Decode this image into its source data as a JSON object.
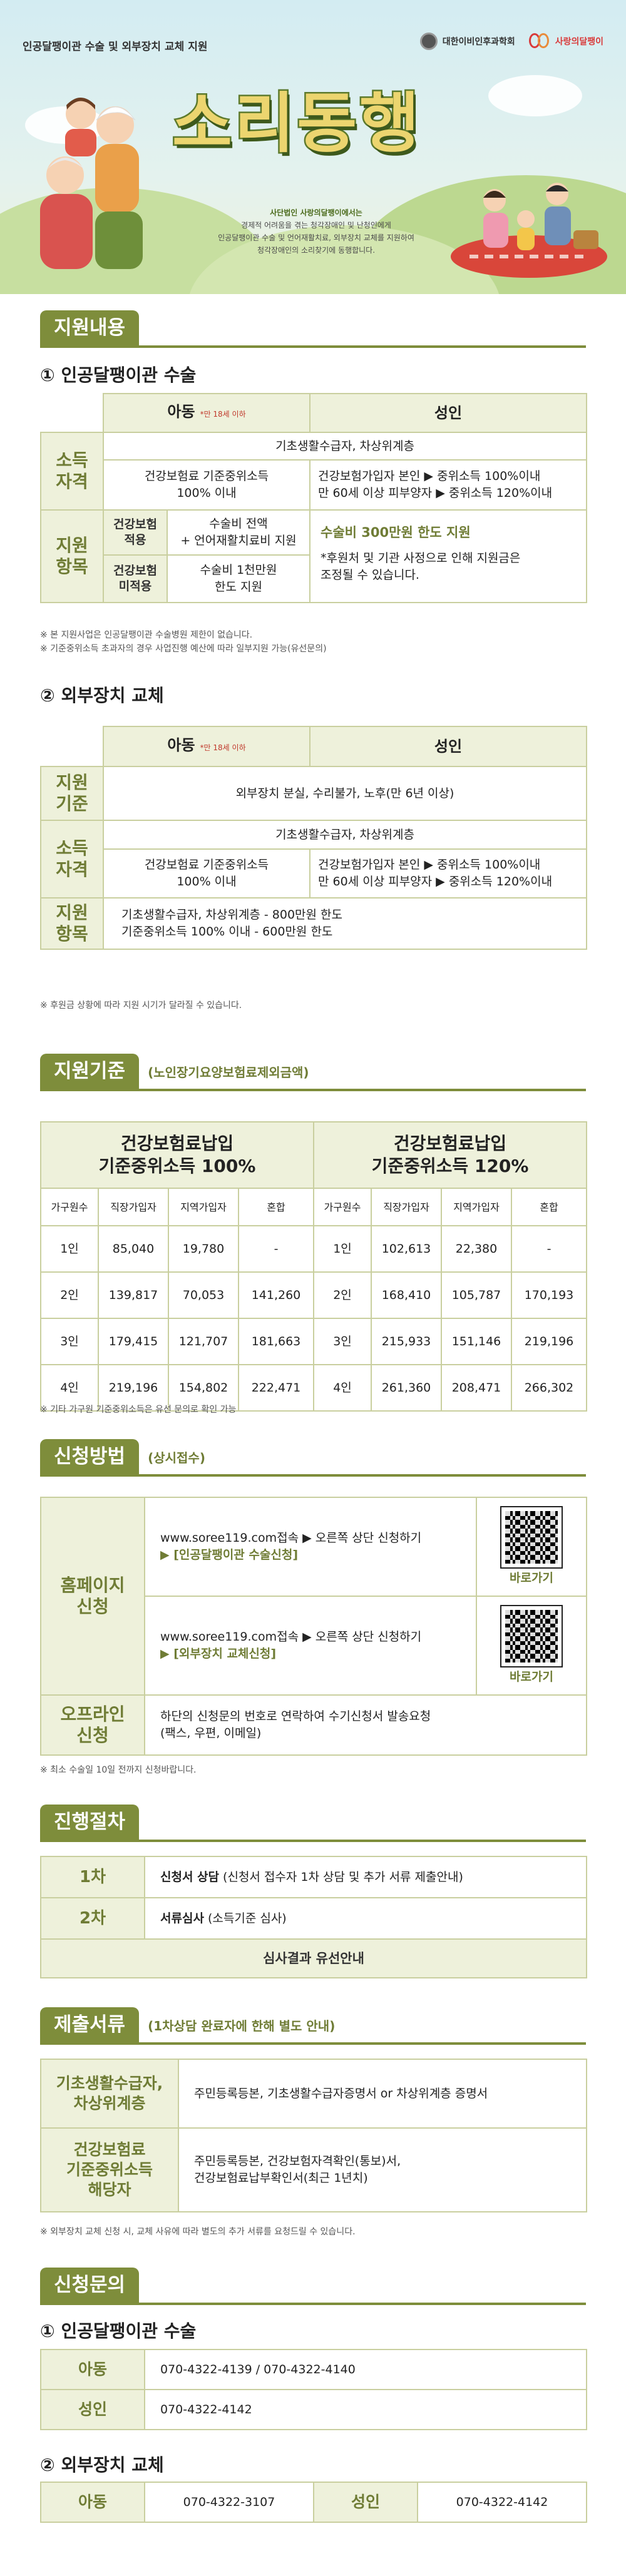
{
  "hero": {
    "topline": "인공달팽이관 수술 및 외부장치 교체 지원",
    "org1": "대한이비인후과학회",
    "org2": "사랑의달팽이",
    "title": "소리동행",
    "desc_lines": [
      "사단법인 사랑의달팽이에서는",
      "경제적 어려움을 겪는 청각장애인 및 난청인에게",
      "인공달팽이관 수술 및 언어재활치료, 외부장치 교체를 지원하여",
      "청각장애인의 소리찾기에 동행합니다."
    ]
  },
  "s1": {
    "title": "지원내용",
    "sub1": "① 인공달팽이관 수술",
    "t1": {
      "child": "아동",
      "child_note": "*만 18세 이하",
      "adult": "성인",
      "label_qual": "소득\n자격",
      "label_items": "지원\n항목",
      "qual_common": "기초생활수급자, 차상위계층",
      "qual_child": "건강보험료 기준중위소득\n100% 이내",
      "qual_adult_1": "건강보험가입자 본인 ▶ 중위소득 100%이내",
      "qual_adult_2": "만 60세 이상 피부양자 ▶ 중위소득 120%이내",
      "ins_yes": "건강보험\n적용",
      "ins_yes_val": "수술비 전액\n+ 언어재활치료비 지원",
      "ins_no": "건강보험\n미적용",
      "ins_no_val": "수술비 1천만원\n한도 지원",
      "adult_item_1": "수술비 300만원 한도 지원",
      "adult_item_2": "*후원처 및 기관 사정으로 인해 지원금은\n조정될 수 있습니다."
    },
    "note1": "※ 본 지원사업은 인공달팽이관 수술병원 제한이 없습니다.",
    "note2": "※ 기준중위소득 초과자의 경우 사업진행 예산에 따라 일부지원 가능(유선문의)",
    "sub2": "② 외부장치 교체",
    "t2": {
      "child": "아동",
      "child_note": "*만 18세 이하",
      "adult": "성인",
      "label_basis": "지원\n기준",
      "basis": "외부장치 분실, 수리불가, 노후(만 6년 이상)",
      "label_qual": "소득\n자격",
      "qual_common": "기초생활수급자, 차상위계층",
      "qual_child": "건강보험료 기준중위소득\n100% 이내",
      "qual_adult_1": "건강보험가입자 본인 ▶ 중위소득 100%이내",
      "qual_adult_2": "만 60세 이상 피부양자 ▶ 중위소득 120%이내",
      "label_items": "지원\n항목",
      "item_1": "기초생활수급자, 차상위계층  -  800만원 한도",
      "item_2": "기준중위소득 100% 이내  -  600만원 한도"
    },
    "note3": "※ 후원금 상황에 따라 지원 시기가 달라질 수 있습니다."
  },
  "s2": {
    "title": "지원기준",
    "note": "(노인장기요양보험료제외금액)",
    "left_head": "건강보험료납입\n기준중위소득 100%",
    "right_head": "건강보험료납입\n기준중위소득 120%",
    "cols": [
      "가구원수",
      "직장가입자",
      "지역가입자",
      "혼합"
    ],
    "rows_left": [
      [
        "1인",
        "85,040",
        "19,780",
        "-"
      ],
      [
        "2인",
        "139,817",
        "70,053",
        "141,260"
      ],
      [
        "3인",
        "179,415",
        "121,707",
        "181,663"
      ],
      [
        "4인",
        "219,196",
        "154,802",
        "222,471"
      ]
    ],
    "rows_right": [
      [
        "1인",
        "102,613",
        "22,380",
        "-"
      ],
      [
        "2인",
        "168,410",
        "105,787",
        "170,193"
      ],
      [
        "3인",
        "215,933",
        "151,146",
        "219,196"
      ],
      [
        "4인",
        "261,360",
        "208,471",
        "266,302"
      ]
    ],
    "footnote": "※ 기타 가구원 기준중위소득은 유선 문의로 확인 가능"
  },
  "s3": {
    "title": "신청방법",
    "note": "(상시접수)",
    "label_home": "홈페이지\n신청",
    "home_1a": "www.soree119.com접속 ▶ 오른쪽 상단 신청하기",
    "home_1b": "▶ [인공달팽이관 수술신청]",
    "home_2a": "www.soree119.com접속 ▶ 오른쪽 상단 신청하기",
    "home_2b": "▶ [외부장치 교체신청]",
    "qr_caption": "바로가기",
    "label_off": "오프라인\n신청",
    "off_text": "하단의 신청문의 번호로 연락하여 수기신청서 발송요청\n(팩스, 우편, 이메일)",
    "footnote": "※ 최소 수술일 10일 전까지 신청바랍니다."
  },
  "s4": {
    "title": "진행절차",
    "step1_label": "1차",
    "step1_bold": "신청서 상담",
    "step1_text": " (신청서 접수자 1차 상담 및 추가 서류 제출안내)",
    "step2_label": "2차",
    "step2_bold": "서류심사",
    "step2_text": " (소득기준 심사)",
    "step3": "심사결과 유선안내"
  },
  "s5": {
    "title": "제출서류",
    "note": "(1차상담 완료자에 한해 별도 안내)",
    "label_1": "기초생활수급자,\n차상위계층",
    "text_1": "주민등록등본, 기초생활수급자증명서 or 차상위계층 증명서",
    "label_2": "건강보험료\n기준중위소득\n해당자",
    "text_2": "주민등록등본, 건강보험자격확인(통보)서,\n건강보험료납부확인서(최근 1년치)",
    "footnote": "※ 외부장치 교체 신청 시, 교체 사유에 따라 별도의 추가 서류를 요청드릴 수 있습니다."
  },
  "s6": {
    "title": "신청문의",
    "sub1": "① 인공달팽이관 수술",
    "child": "아동",
    "child_phone": "070-4322-4139 / 070-4322-4140",
    "adult": "성인",
    "adult_phone": "070-4322-4142",
    "sub2": "② 외부장치 교체",
    "child2": "아동",
    "child2_phone": "070-4322-3107",
    "adult2": "성인",
    "adult2_phone": "070-4322-4142"
  }
}
